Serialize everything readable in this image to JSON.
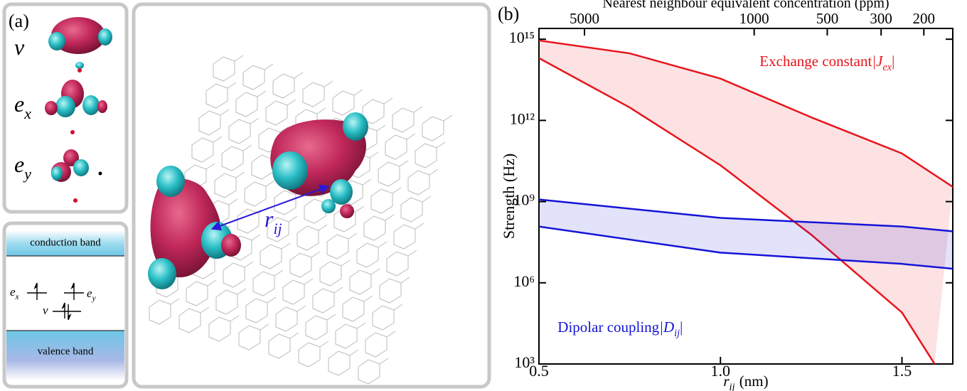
{
  "panel_a": {
    "label": "(a)",
    "orbitals": [
      {
        "symbol": "v"
      },
      {
        "symbol": "e",
        "sub": "x"
      },
      {
        "symbol": "e",
        "sub": "y"
      }
    ],
    "band_diagram": {
      "conduction": "conduction band",
      "valence": "valence band",
      "levels": [
        {
          "symbol": "e",
          "sub": "x"
        },
        {
          "symbol": "e",
          "sub": "y"
        },
        {
          "symbol": "v"
        }
      ]
    },
    "distance": {
      "symbol": "r",
      "sub": "ij"
    }
  },
  "chart_data": {
    "type": "band",
    "panel_label": "(b)",
    "y_label": "Strength (Hz)",
    "x_label": {
      "symbol": "r",
      "sub": "ij",
      "unit": "(nm)"
    },
    "x2_label": "Nearest neighbour equivalent concentration (ppm)",
    "xlim": [
      0.5,
      1.64
    ],
    "xticks": [
      0.5,
      {
        "value": 1,
        "label": "1.0"
      },
      1.5
    ],
    "x2lim": [
      7700,
      152
    ],
    "x2scale": "log",
    "x2ticks": [
      5000,
      1000,
      500,
      300,
      200
    ],
    "ylim": [
      1000,
      2500000000000000
    ],
    "yscale": "log",
    "yticks": [
      {
        "value": 1000,
        "label": "10³"
      },
      {
        "value": 1000000,
        "label": "10⁶"
      },
      {
        "value": 1000000000,
        "label": "10⁹"
      },
      {
        "value": 1000000000000,
        "label": "10¹²"
      },
      {
        "value": 1000000000000000,
        "label": "10¹⁵"
      }
    ],
    "bands": [
      {
        "label": {
          "text": "Exchange constant",
          "symbol": "|J",
          "sub": "ex",
          "close": "|"
        },
        "color": "#e8141c",
        "upper": {
          "x": [
            0.5,
            0.75,
            1.0,
            1.25,
            1.5,
            1.64
          ],
          "values": [
            900000000000000,
            300000000000000,
            35000000000000,
            1300000000000,
            60000000000,
            3500000000
          ]
        },
        "lower": {
          "x": [
            0.5,
            0.75,
            1.0,
            1.25,
            1.5,
            1.59
          ],
          "values": [
            200000000000000,
            3000000000000,
            22000000000,
            60000000,
            80000,
            1000
          ]
        }
      },
      {
        "label": {
          "text": "Dipolar coupling",
          "symbol": "|D",
          "sub": "ij",
          "close": "|"
        },
        "color": "#1414d8",
        "upper": {
          "x": [
            0.5,
            1.0,
            1.5,
            1.64
          ],
          "values": [
            1200000000,
            250000000,
            120000000,
            80000000
          ]
        },
        "lower": {
          "x": [
            0.5,
            1.0,
            1.5,
            1.64
          ],
          "values": [
            120000000,
            13000000,
            5000000,
            3300000
          ]
        }
      }
    ]
  }
}
